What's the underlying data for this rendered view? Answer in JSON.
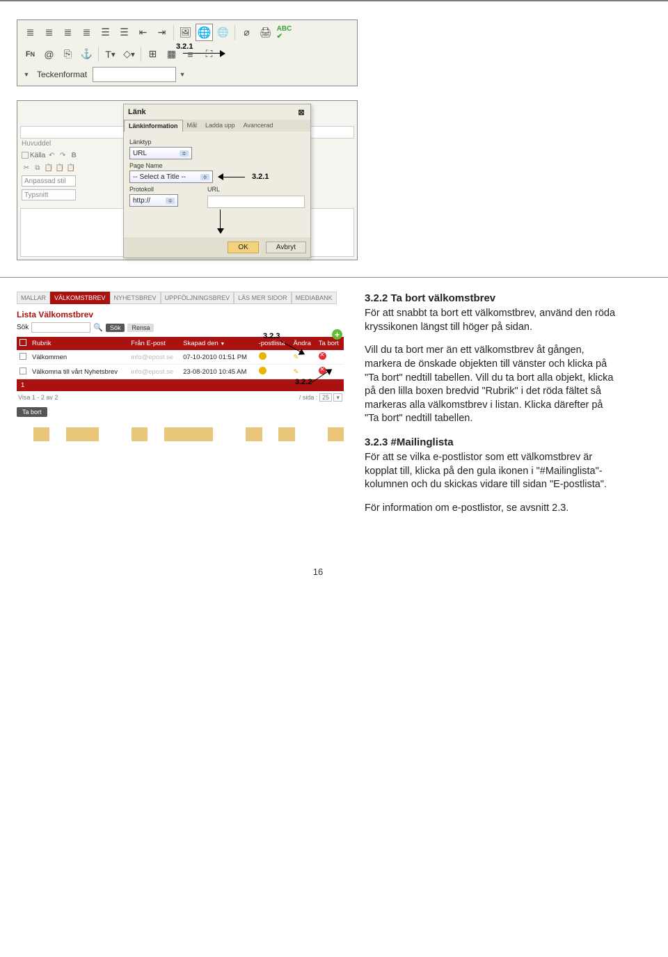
{
  "toolbar": {
    "teckenformat": "Teckenformat",
    "ann1": "3.2.1",
    "icons": [
      "≡",
      "≡",
      "⋮≡",
      "⋮≡",
      "☰",
      "☰",
      "⇤",
      "⇥",
      "▭",
      "🖼",
      "🌐",
      "🖼",
      "⎙",
      "🖨",
      "ABC✓",
      "Fɴ",
      "@",
      "⎘",
      "⚓",
      "T▾",
      "◇▾",
      "▦",
      "⊞",
      "☰",
      "⛶"
    ]
  },
  "editor": {
    "huvuddel": "Huvuddel",
    "kalla": "Källa",
    "anpassad": "Anpassad stil",
    "typsnitt": "Typsnitt"
  },
  "dialog": {
    "title": "Länk",
    "tabs": [
      "Länkinformation",
      "Mål",
      "Ladda upp",
      "Avancerad"
    ],
    "linktype_lbl": "Länktyp",
    "linktype_val": "URL",
    "page_lbl": "Page Name",
    "page_val": "-- Select a Title --",
    "proto_lbl": "Protokoll",
    "proto_val": "http://",
    "url_lbl": "URL",
    "ok": "OK",
    "cancel": "Avbryt",
    "ann": "3.2.1"
  },
  "listing": {
    "tabs": [
      "MALLAR",
      "VÄLKOMSTBREV",
      "NYHETSBREV",
      "UPPFÖLJNINGSBREV",
      "LÄS MER SIDOR",
      "MEDIABANK"
    ],
    "title": "Lista Välkomstbrev",
    "sok_lbl": "Sök",
    "sok_btn": "Sök",
    "rensa_btn": "Rensa",
    "cols": [
      "Rubrik",
      "Från E-post",
      "Skapad den",
      "-postlista",
      "Ändra",
      "Ta bort"
    ],
    "rows": [
      {
        "rubrik": "Välkommen",
        "from": "info@epost.se",
        "date": "07-10-2010 01:51 PM"
      },
      {
        "rubrik": "Välkomna till vårt Nyhetsbrev",
        "from": "info@epost.se",
        "date": "23-08-2010 10:45 AM"
      }
    ],
    "selnum": "1",
    "visa": "Visa 1 - 2 av 2",
    "persida": "/ sida :",
    "persida_n": "25",
    "tabort": "Ta bort",
    "ann1": "3.2.3",
    "ann2": "3.2.2",
    "mosaic": [
      "#fff",
      "#e8c77a",
      "#fff",
      "#e8c77a",
      "#e8c77a",
      "#fff",
      "#fff",
      "#e8c77a",
      "#fff",
      "#e8c77a",
      "#e8c77a",
      "#e8c77a",
      "#fff",
      "#fff",
      "#e8c77a",
      "#fff",
      "#e8c77a",
      "#fff",
      "#fff",
      "#e8c77a"
    ]
  },
  "text": {
    "h1": "3.2.2 Ta bort välkomstbrev",
    "p1a": "För att snabbt ta bort ett välkomstbrev, använd den röda kryssikonen längst till höger på sidan.",
    "p1b": "Vill du ta bort mer än ett välkomstbrev åt gången, markera de önskade objekten till vänster och klicka på \"Ta bort\" nedtill tabellen. Vill du ta bort alla objekt, klicka på den lilla boxen bredvid \"Rubrik\" i det röda fältet så markeras alla välkomstbrev i listan. Klicka därefter på \"Ta bort\" nedtill tabellen.",
    "h2": "3.2.3 #Mailinglista",
    "p2a": "För att se vilka e-postlistor som ett välkomstbrev är kopplat till, klicka på den gula ikonen i \"#Mailinglista\"-kolumnen och du skickas vidare till sidan \"E-postlista\".",
    "p2b": "För information om e-postlistor, se avsnitt 2.3."
  },
  "pagenum": "16"
}
